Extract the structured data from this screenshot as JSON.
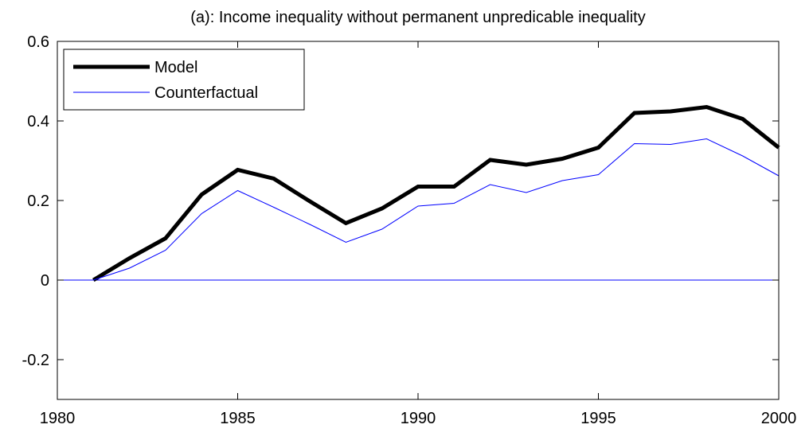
{
  "chart_data": {
    "type": "line",
    "title": "(a): Income inequality without permanent unpredicable inequality",
    "x": [
      1981,
      1982,
      1983,
      1984,
      1985,
      1986,
      1987,
      1988,
      1989,
      1990,
      1991,
      1992,
      1993,
      1994,
      1995,
      1996,
      1997,
      1998,
      1999,
      2000
    ],
    "series": [
      {
        "name": "Model",
        "color": "#000000",
        "width": 5,
        "values": [
          0,
          0.055,
          0.105,
          0.215,
          0.277,
          0.255,
          0.198,
          0.143,
          0.18,
          0.235,
          0.235,
          0.302,
          0.29,
          0.305,
          0.333,
          0.42,
          0.424,
          0.435,
          0.405,
          0.333
        ]
      },
      {
        "name": "Counterfactual",
        "color": "#0000ff",
        "width": 1,
        "values": [
          0,
          0.03,
          0.075,
          0.167,
          0.225,
          0.183,
          0.14,
          0.095,
          0.128,
          0.186,
          0.193,
          0.24,
          0.22,
          0.25,
          0.265,
          0.343,
          0.341,
          0.355,
          0.312,
          0.262
        ]
      }
    ],
    "reference_line": {
      "y": 0,
      "color": "#0000ff"
    },
    "xlim": [
      1980,
      2000
    ],
    "xticks": [
      1980,
      1985,
      1990,
      1995,
      2000
    ],
    "ylim": [
      -0.3,
      0.6
    ],
    "yticks": [
      -0.2,
      0,
      0.2,
      0.4,
      0.6
    ],
    "legend": "upper-left"
  }
}
